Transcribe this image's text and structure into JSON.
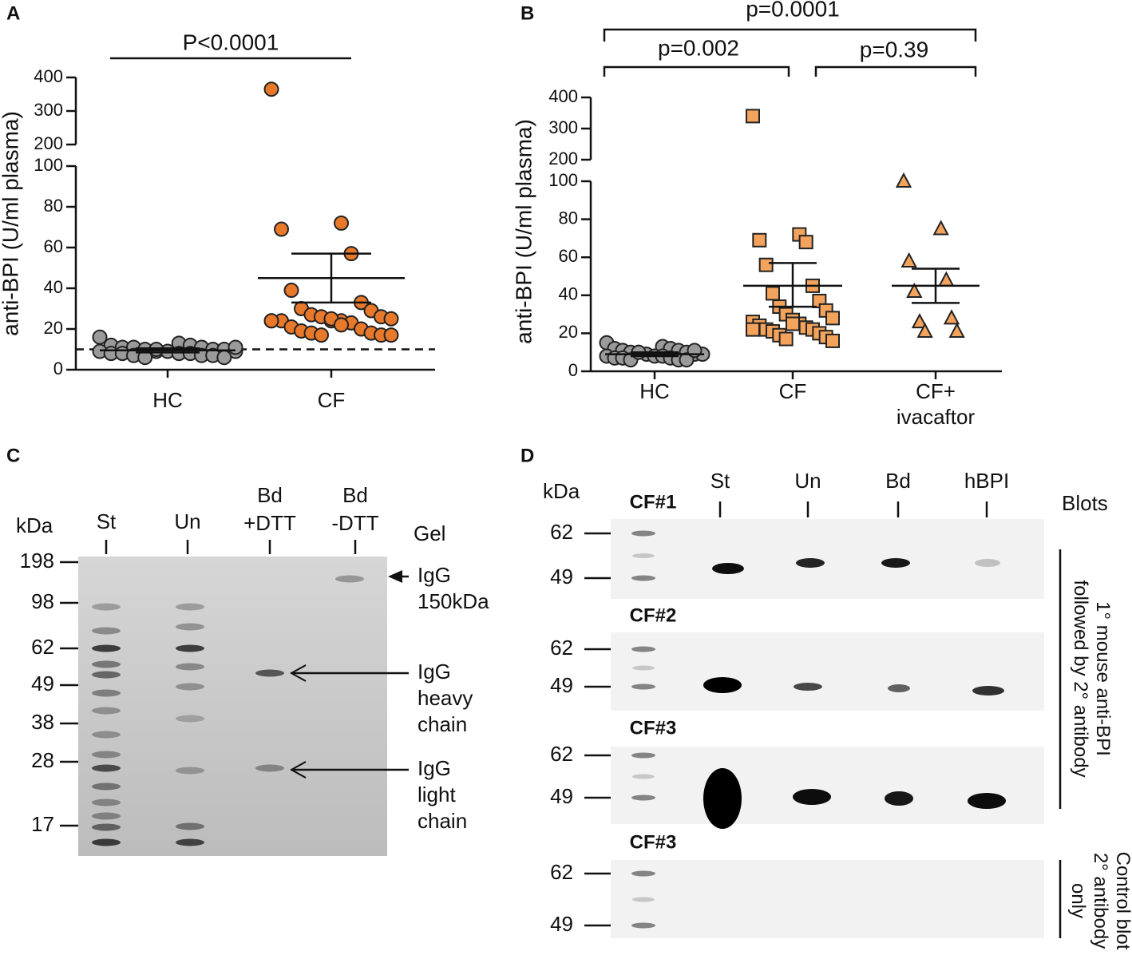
{
  "chart_data": [
    {
      "type": "dot",
      "panel": "A",
      "ylabel": "anti-BPI (U/ml plasma)",
      "categories": [
        "HC",
        "CF"
      ],
      "groups": [
        {
          "color": "#9a9a9a",
          "marker": "circle",
          "mean": 9.5,
          "sem": [
            8.5,
            10.5
          ],
          "values": [
            16,
            13,
            12,
            12,
            11,
            11,
            11,
            10,
            10,
            10,
            9,
            9,
            9,
            9,
            8,
            8,
            8,
            8,
            7,
            7,
            7,
            6,
            6,
            10,
            11
          ]
        },
        {
          "color": "#e8782a",
          "marker": "circle",
          "mean": 45,
          "sem": [
            33,
            57
          ],
          "values": [
            365,
            72,
            69,
            57,
            39,
            33,
            30,
            29,
            27,
            26,
            26,
            25,
            24,
            24,
            24,
            24,
            23,
            21,
            20,
            19,
            18,
            18,
            17,
            17,
            17,
            25,
            24,
            22
          ]
        }
      ],
      "ylim": [
        0,
        400
      ],
      "ybreak": [
        100,
        200
      ],
      "yticks": [
        0,
        20,
        40,
        60,
        80,
        100,
        200,
        300,
        400
      ],
      "threshold": 10,
      "annotations": [
        "P<0.0001"
      ]
    },
    {
      "type": "dot",
      "panel": "B",
      "ylabel": "anti-BPI (U/ml plasma)",
      "categories": [
        "HC",
        "CF",
        "CF+\nivacaftor"
      ],
      "groups": [
        {
          "color": "#9a9a9a",
          "marker": "circle",
          "mean": 9,
          "sem": [
            8,
            10
          ],
          "values": [
            15,
            13,
            12,
            12,
            11,
            11,
            10,
            10,
            10,
            9,
            9,
            9,
            8,
            8,
            8,
            7,
            7,
            7,
            6,
            6,
            6,
            10,
            11
          ]
        },
        {
          "color": "#f3a35c",
          "marker": "square",
          "mean": 45,
          "sem": [
            34,
            57
          ],
          "values": [
            340,
            72,
            69,
            68,
            56,
            45,
            41,
            37,
            34,
            32,
            30,
            28,
            27,
            26,
            25,
            24,
            23,
            22,
            22,
            21,
            20,
            19,
            18,
            17,
            16,
            25,
            22
          ]
        },
        {
          "color": "#f3a35c",
          "marker": "triangle",
          "mean": 45,
          "sem": [
            36,
            54
          ],
          "values": [
            100,
            75,
            58,
            48,
            42,
            28,
            26,
            21,
            21
          ]
        }
      ],
      "ylim": [
        0,
        400
      ],
      "ybreak": [
        100,
        200
      ],
      "yticks": [
        0,
        20,
        40,
        60,
        80,
        100,
        200,
        300,
        400
      ],
      "annotations": [
        "p=0.0001",
        "p=0.002",
        "p=0.39"
      ]
    }
  ],
  "panel_c": {
    "panel": "C",
    "unit": "kDa",
    "lanes": [
      "St",
      "Un",
      "Bd\n+DTT",
      "Bd\n-DTT"
    ],
    "gel_label": "Gel",
    "markers": [
      198,
      98,
      62,
      49,
      38,
      28,
      17
    ],
    "callouts": [
      "IgG\n150kDa",
      "IgG\nheavy\nchain",
      "IgG\nlight\nchain"
    ]
  },
  "panel_d": {
    "panel": "D",
    "unit": "kDa",
    "lanes": [
      "St",
      "Un",
      "Bd",
      "hBPI"
    ],
    "blots_label": "Blots",
    "blots": [
      {
        "label": "CF#1",
        "markers": [
          62,
          49
        ]
      },
      {
        "label": "CF#2",
        "markers": [
          62,
          49
        ]
      },
      {
        "label": "CF#3",
        "markers": [
          62,
          49
        ]
      },
      {
        "label": "CF#3",
        "markers": [
          62,
          49
        ]
      }
    ],
    "side_labels": [
      "1° mouse anti-BPI\nfollowed by 2° antibody",
      "Control blot\n2° antibody\nonly"
    ]
  }
}
